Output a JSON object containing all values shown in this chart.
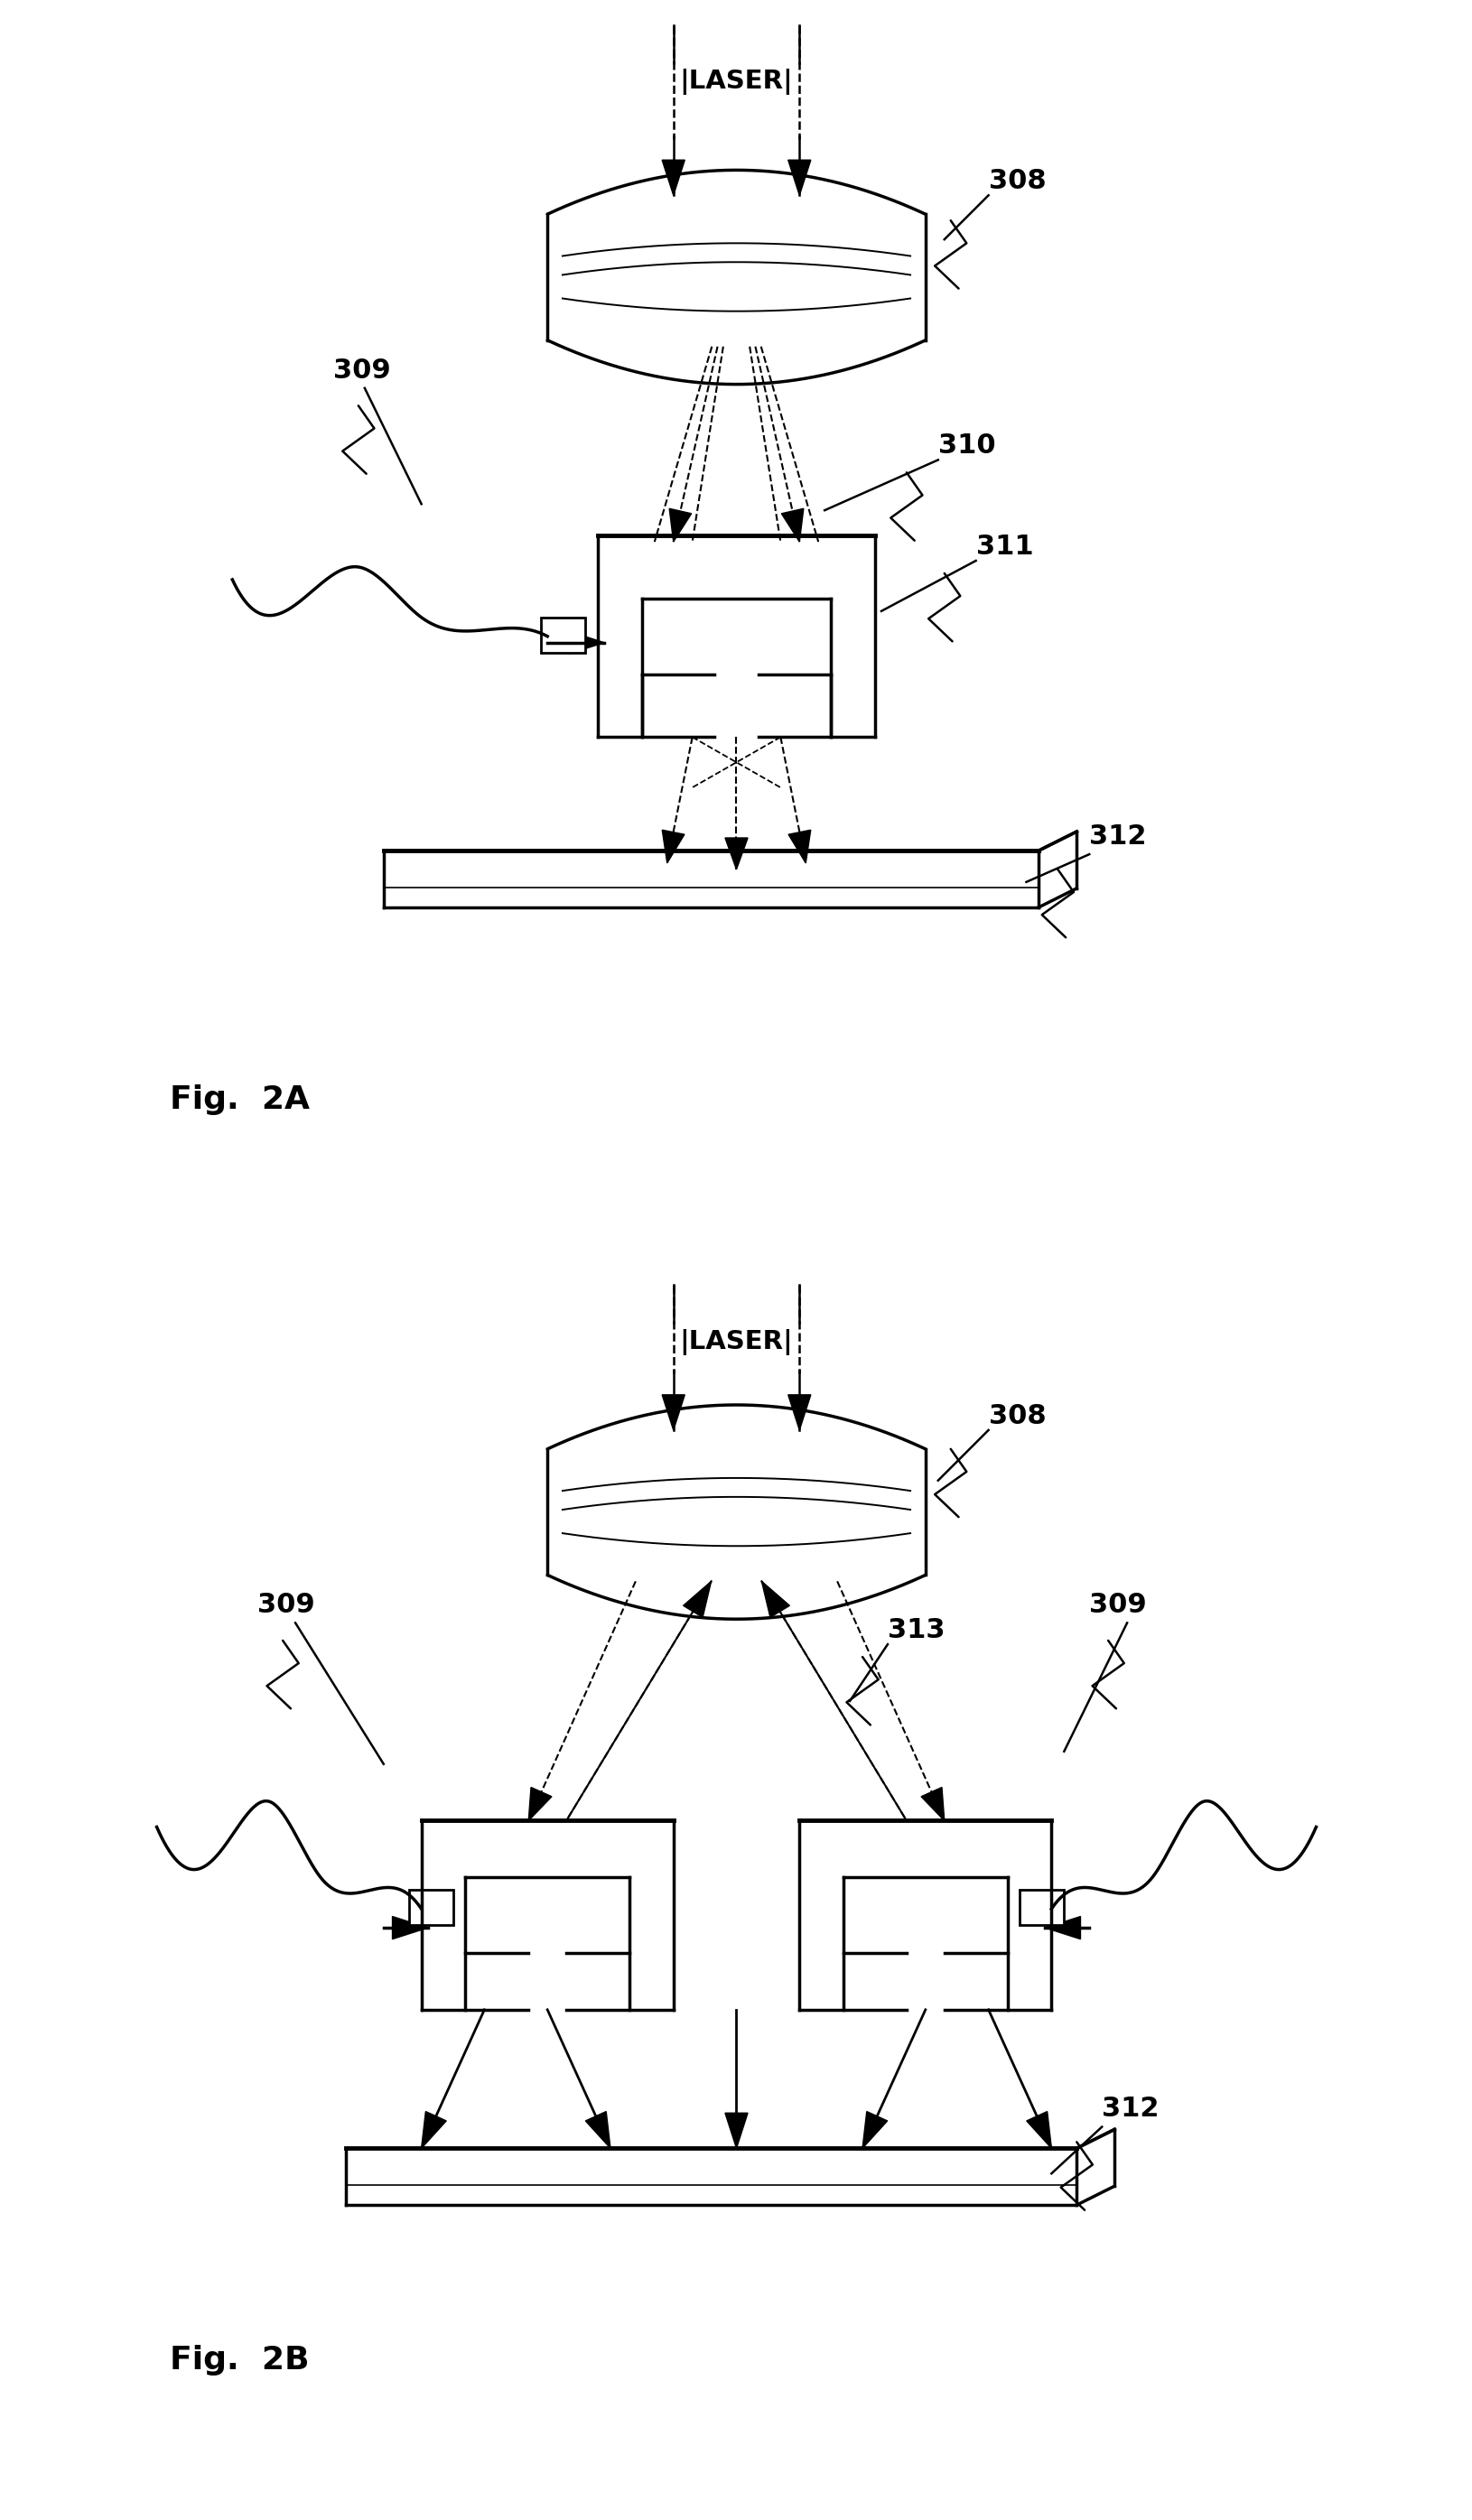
{
  "background_color": "#ffffff",
  "line_color": "#000000",
  "fig_label_2A": "Fig.  2A",
  "fig_label_2B": "Fig.  2B",
  "label_308": "308",
  "label_309": "309",
  "label_310": "310",
  "label_311": "311",
  "label_312": "312",
  "label_313": "313",
  "laser_text": "LASER"
}
